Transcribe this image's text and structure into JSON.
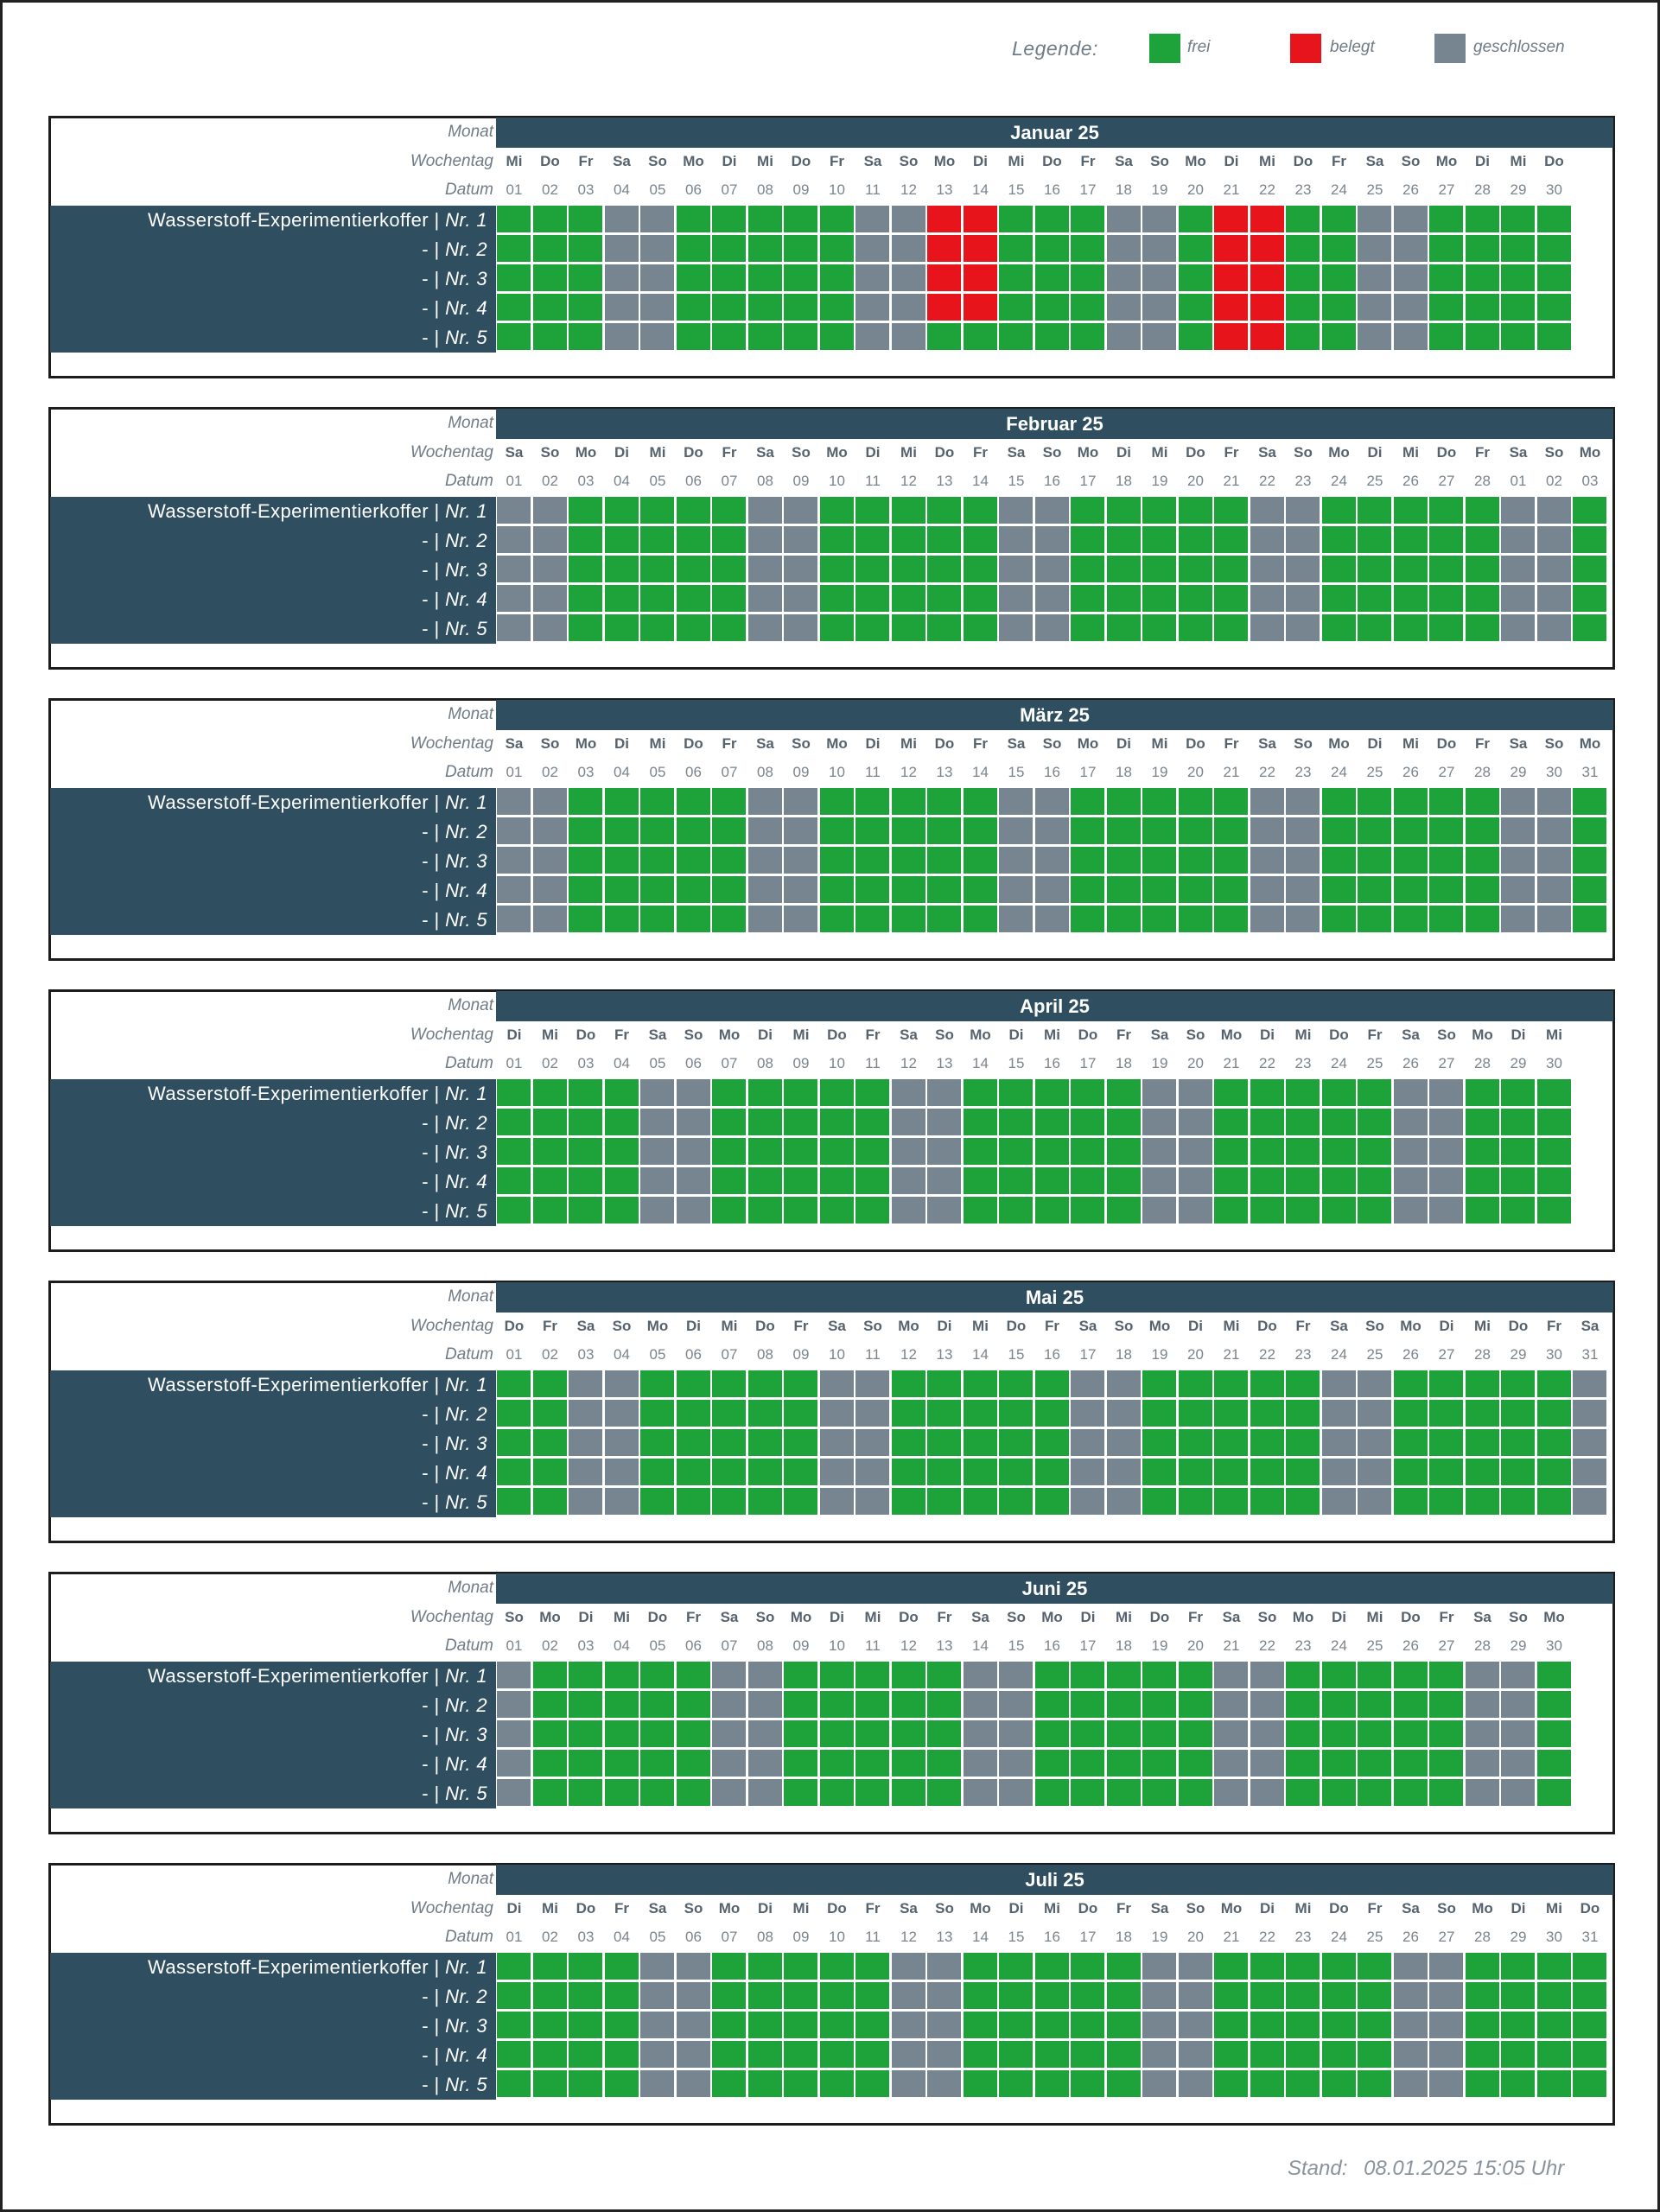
{
  "legend": {
    "title": "Legende:",
    "items": [
      {
        "label": "frei",
        "color": "#1ea33a"
      },
      {
        "label": "belegt",
        "color": "#e8141c"
      },
      {
        "label": "geschlossen",
        "color": "#76858f"
      }
    ]
  },
  "labels": {
    "monat": "Monat",
    "wochentag": "Wochentag",
    "datum": "Datum"
  },
  "rows": [
    {
      "name": "Wasserstoff-Experimentierkoffer",
      "sep": " | ",
      "nr": "Nr. 1"
    },
    {
      "name": "-",
      "sep": " | ",
      "nr": "Nr. 2"
    },
    {
      "name": "-",
      "sep": " | ",
      "nr": "Nr. 3"
    },
    {
      "name": "-",
      "sep": " | ",
      "nr": "Nr. 4"
    },
    {
      "name": "-",
      "sep": " | ",
      "nr": "Nr. 5"
    }
  ],
  "status_colors": {
    "f": "#1ea33a",
    "b": "#e8141c",
    "g": "#76858f"
  },
  "months": [
    {
      "title": "Januar 25",
      "weekdays": [
        "Mi",
        "Do",
        "Fr",
        "Sa",
        "So",
        "Mo",
        "Di",
        "Mi",
        "Do",
        "Fr",
        "Sa",
        "So",
        "Mo",
        "Di",
        "Mi",
        "Do",
        "Fr",
        "Sa",
        "So",
        "Mo",
        "Di",
        "Mi",
        "Do",
        "Fr",
        "Sa",
        "So",
        "Mo",
        "Di",
        "Mi",
        "Do"
      ],
      "dates": [
        "01",
        "02",
        "03",
        "04",
        "05",
        "06",
        "07",
        "08",
        "09",
        "10",
        "11",
        "12",
        "13",
        "14",
        "15",
        "16",
        "17",
        "18",
        "19",
        "20",
        "21",
        "22",
        "23",
        "24",
        "25",
        "26",
        "27",
        "28",
        "29",
        "30"
      ],
      "status": [
        "fffggfffffggbbfffggfbbffggffff",
        "fffggfffffggbbfffggfbbffggffff",
        "fffggfffffggbbfffggfbbffggffff",
        "fffggfffffggbbfffggfbbffggffff",
        "fffggfffffggfffffggfbbffggffff"
      ]
    },
    {
      "title": "Februar 25",
      "weekdays": [
        "Sa",
        "So",
        "Mo",
        "Di",
        "Mi",
        "Do",
        "Fr",
        "Sa",
        "So",
        "Mo",
        "Di",
        "Mi",
        "Do",
        "Fr",
        "Sa",
        "So",
        "Mo",
        "Di",
        "Mi",
        "Do",
        "Fr",
        "Sa",
        "So",
        "Mo",
        "Di",
        "Mi",
        "Do",
        "Fr",
        "Sa",
        "So",
        "Mo"
      ],
      "dates": [
        "01",
        "02",
        "03",
        "04",
        "05",
        "06",
        "07",
        "08",
        "09",
        "10",
        "11",
        "12",
        "13",
        "14",
        "15",
        "16",
        "17",
        "18",
        "19",
        "20",
        "21",
        "22",
        "23",
        "24",
        "25",
        "26",
        "27",
        "28",
        "01",
        "02",
        "03"
      ],
      "status": [
        "ggfffffggfffffggfffffggfffffggf",
        "ggfffffggfffffggfffffggfffffggf",
        "ggfffffggfffffggfffffggfffffggf",
        "ggfffffggfffffggfffffggfffffggf",
        "ggfffffggfffffggfffffggfffffggf"
      ]
    },
    {
      "title": "März 25",
      "weekdays": [
        "Sa",
        "So",
        "Mo",
        "Di",
        "Mi",
        "Do",
        "Fr",
        "Sa",
        "So",
        "Mo",
        "Di",
        "Mi",
        "Do",
        "Fr",
        "Sa",
        "So",
        "Mo",
        "Di",
        "Mi",
        "Do",
        "Fr",
        "Sa",
        "So",
        "Mo",
        "Di",
        "Mi",
        "Do",
        "Fr",
        "Sa",
        "So",
        "Mo"
      ],
      "dates": [
        "01",
        "02",
        "03",
        "04",
        "05",
        "06",
        "07",
        "08",
        "09",
        "10",
        "11",
        "12",
        "13",
        "14",
        "15",
        "16",
        "17",
        "18",
        "19",
        "20",
        "21",
        "22",
        "23",
        "24",
        "25",
        "26",
        "27",
        "28",
        "29",
        "30",
        "31"
      ],
      "status": [
        "ggfffffggfffffggfffffggfffffggf",
        "ggfffffggfffffggfffffggfffffggf",
        "ggfffffggfffffggfffffggfffffggf",
        "ggfffffggfffffggfffffggfffffggf",
        "ggfffffggfffffggfffffggfffffggf"
      ]
    },
    {
      "title": "April 25",
      "weekdays": [
        "Di",
        "Mi",
        "Do",
        "Fr",
        "Sa",
        "So",
        "Mo",
        "Di",
        "Mi",
        "Do",
        "Fr",
        "Sa",
        "So",
        "Mo",
        "Di",
        "Mi",
        "Do",
        "Fr",
        "Sa",
        "So",
        "Mo",
        "Di",
        "Mi",
        "Do",
        "Fr",
        "Sa",
        "So",
        "Mo",
        "Di",
        "Mi"
      ],
      "dates": [
        "01",
        "02",
        "03",
        "04",
        "05",
        "06",
        "07",
        "08",
        "09",
        "10",
        "11",
        "12",
        "13",
        "14",
        "15",
        "16",
        "17",
        "18",
        "19",
        "20",
        "21",
        "22",
        "23",
        "24",
        "25",
        "26",
        "27",
        "28",
        "29",
        "30"
      ],
      "status": [
        "ffffggfffffggfffffggfffffggfff",
        "ffffggfffffggfffffggfffffggfff",
        "ffffggfffffggfffffggfffffggfff",
        "ffffggfffffggfffffggfffffggfff",
        "ffffggfffffggfffffggfffffggfff"
      ]
    },
    {
      "title": "Mai 25",
      "weekdays": [
        "Do",
        "Fr",
        "Sa",
        "So",
        "Mo",
        "Di",
        "Mi",
        "Do",
        "Fr",
        "Sa",
        "So",
        "Mo",
        "Di",
        "Mi",
        "Do",
        "Fr",
        "Sa",
        "So",
        "Mo",
        "Di",
        "Mi",
        "Do",
        "Fr",
        "Sa",
        "So",
        "Mo",
        "Di",
        "Mi",
        "Do",
        "Fr",
        "Sa"
      ],
      "dates": [
        "01",
        "02",
        "03",
        "04",
        "05",
        "06",
        "07",
        "08",
        "09",
        "10",
        "11",
        "12",
        "13",
        "14",
        "15",
        "16",
        "17",
        "18",
        "19",
        "20",
        "21",
        "22",
        "23",
        "24",
        "25",
        "26",
        "27",
        "28",
        "29",
        "30",
        "31"
      ],
      "status": [
        "ffggfffffggfffffggfffffggfffffg",
        "ffggfffffggfffffggfffffggfffffg",
        "ffggfffffggfffffggfffffggfffffg",
        "ffggfffffggfffffggfffffggfffffg",
        "ffggfffffggfffffggfffffggfffffg"
      ]
    },
    {
      "title": "Juni 25",
      "weekdays": [
        "So",
        "Mo",
        "Di",
        "Mi",
        "Do",
        "Fr",
        "Sa",
        "So",
        "Mo",
        "Di",
        "Mi",
        "Do",
        "Fr",
        "Sa",
        "So",
        "Mo",
        "Di",
        "Mi",
        "Do",
        "Fr",
        "Sa",
        "So",
        "Mo",
        "Di",
        "Mi",
        "Do",
        "Fr",
        "Sa",
        "So",
        "Mo"
      ],
      "dates": [
        "01",
        "02",
        "03",
        "04",
        "05",
        "06",
        "07",
        "08",
        "09",
        "10",
        "11",
        "12",
        "13",
        "14",
        "15",
        "16",
        "17",
        "18",
        "19",
        "20",
        "21",
        "22",
        "23",
        "24",
        "25",
        "26",
        "27",
        "28",
        "29",
        "30"
      ],
      "status": [
        "gfffffggfffffggfffffggfffffggf",
        "gfffffggfffffggfffffggfffffggf",
        "gfffffggfffffggfffffggfffffggf",
        "gfffffggfffffggfffffggfffffggf",
        "gfffffggfffffggfffffggfffffggf"
      ]
    },
    {
      "title": "Juli 25",
      "weekdays": [
        "Di",
        "Mi",
        "Do",
        "Fr",
        "Sa",
        "So",
        "Mo",
        "Di",
        "Mi",
        "Do",
        "Fr",
        "Sa",
        "So",
        "Mo",
        "Di",
        "Mi",
        "Do",
        "Fr",
        "Sa",
        "So",
        "Mo",
        "Di",
        "Mi",
        "Do",
        "Fr",
        "Sa",
        "So",
        "Mo",
        "Di",
        "Mi",
        "Do"
      ],
      "dates": [
        "01",
        "02",
        "03",
        "04",
        "05",
        "06",
        "07",
        "08",
        "09",
        "10",
        "11",
        "12",
        "13",
        "14",
        "15",
        "16",
        "17",
        "18",
        "19",
        "20",
        "21",
        "22",
        "23",
        "24",
        "25",
        "26",
        "27",
        "28",
        "29",
        "30",
        "31"
      ],
      "status": [
        "ffffggfffffggfffffggfffffggffff",
        "ffffggfffffggfffffggfffffggffff",
        "ffffggfffffggfffffggfffffggffff",
        "ffffggfffffggfffffggfffffggffff",
        "ffffggfffffggfffffggfffffggffff"
      ]
    }
  ],
  "stand": {
    "label": "Stand:",
    "value": "08.01.2025 15:05 Uhr"
  }
}
